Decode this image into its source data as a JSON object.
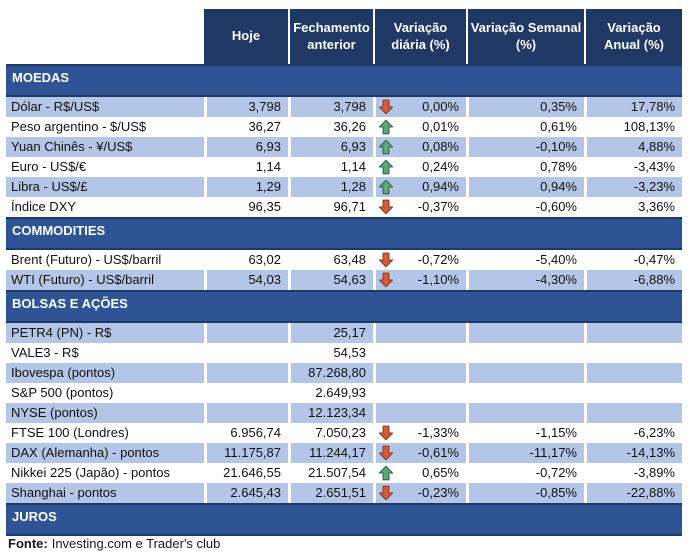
{
  "header": {
    "columns": [
      "Hoje",
      "Fechamento anterior",
      "Variação diária (%)",
      "Variação Semanal (%)",
      "Variação Anual (%)"
    ]
  },
  "sections": [
    {
      "title": "MOEDAS",
      "rows": [
        {
          "label": "Dólar - R$/US$",
          "today": "3,798",
          "prev_close": "3,798",
          "arrow": "down",
          "daily": "0,00%",
          "weekly": "0,35%",
          "annual": "17,78%",
          "shaded": true
        },
        {
          "label": "Peso argentino - $/US$",
          "today": "36,27",
          "prev_close": "36,26",
          "arrow": "up",
          "daily": "0,01%",
          "weekly": "0,61%",
          "annual": "108,13%",
          "shaded": false
        },
        {
          "label": "Yuan Chinês - ¥/US$",
          "today": "6,93",
          "prev_close": "6,93",
          "arrow": "up",
          "daily": "0,08%",
          "weekly": "-0,10%",
          "annual": "4,88%",
          "shaded": true
        },
        {
          "label": "Euro - US$/€",
          "today": "1,14",
          "prev_close": "1,14",
          "arrow": "up",
          "daily": "0,24%",
          "weekly": "0,78%",
          "annual": "-3,43%",
          "shaded": false
        },
        {
          "label": "Libra - US$/£",
          "today": "1,29",
          "prev_close": "1,28",
          "arrow": "up",
          "daily": "0,94%",
          "weekly": "0,94%",
          "annual": "-3,23%",
          "shaded": true
        },
        {
          "label": "Índice DXY",
          "today": "96,35",
          "prev_close": "96,71",
          "arrow": "down",
          "daily": "-0,37%",
          "weekly": "-0,60%",
          "annual": "3,36%",
          "shaded": false
        }
      ]
    },
    {
      "title": "COMMODITIES",
      "rows": [
        {
          "label": "Brent (Futuro) - US$/barril",
          "today": "63,02",
          "prev_close": "63,48",
          "arrow": "down",
          "daily": "-0,72%",
          "weekly": "-5,40%",
          "annual": "-0,47%",
          "shaded": false
        },
        {
          "label": "WTI (Futuro) - US$/barril",
          "today": "54,03",
          "prev_close": "54,63",
          "arrow": "down",
          "daily": "-1,10%",
          "weekly": "-4,30%",
          "annual": "-6,88%",
          "shaded": true
        }
      ]
    },
    {
      "title": "BOLSAS E AÇÕES",
      "rows": [
        {
          "label": "PETR4 (PN) - R$",
          "today": "",
          "prev_close": "25,17",
          "arrow": "",
          "daily": "",
          "weekly": "",
          "annual": "",
          "shaded": true
        },
        {
          "label": "VALE3 - R$",
          "today": "",
          "prev_close": "54,53",
          "arrow": "",
          "daily": "",
          "weekly": "",
          "annual": "",
          "shaded": false
        },
        {
          "label": "Ibovespa (pontos)",
          "today": "",
          "prev_close": "87.268,80",
          "arrow": "",
          "daily": "",
          "weekly": "",
          "annual": "",
          "shaded": true
        },
        {
          "label": "S&P 500 (pontos)",
          "today": "",
          "prev_close": "2.649,93",
          "arrow": "",
          "daily": "",
          "weekly": "",
          "annual": "",
          "shaded": false
        },
        {
          "label": "NYSE (pontos)",
          "today": "",
          "prev_close": "12.123,34",
          "arrow": "",
          "daily": "",
          "weekly": "",
          "annual": "",
          "shaded": true
        },
        {
          "label": "FTSE 100 (Londres)",
          "today": "6.956,74",
          "prev_close": "7.050,23",
          "arrow": "down",
          "daily": "-1,33%",
          "weekly": "-1,15%",
          "annual": "-6,23%",
          "shaded": false
        },
        {
          "label": "DAX (Alemanha) - pontos",
          "today": "11.175,87",
          "prev_close": "11.244,17",
          "arrow": "down",
          "daily": "-0,61%",
          "weekly": "-11,17%",
          "annual": "-14,13%",
          "shaded": true
        },
        {
          "label": "Nikkei 225 (Japão) - pontos",
          "today": "21.646,55",
          "prev_close": "21.507,54",
          "arrow": "up",
          "daily": "0,65%",
          "weekly": "-0,72%",
          "annual": "-3,89%",
          "shaded": false
        },
        {
          "label": "Shanghai - pontos",
          "today": "2.645,43",
          "prev_close": "2.651,51",
          "arrow": "down",
          "daily": "-0,23%",
          "weekly": "-0,85%",
          "annual": "-22,88%",
          "shaded": true
        }
      ]
    },
    {
      "title": "JUROS",
      "rows": []
    }
  ],
  "footer": {
    "source_label": "Fonte:",
    "source_text": "Investing.com e Trader's club"
  },
  "colors": {
    "header_bg": "#1F3864",
    "section_bg": "#2F5496",
    "shaded_row": "#B4C6E7",
    "up_arrow": "#5FA777",
    "up_arrow_stroke": "#2E6B4E",
    "down_arrow": "#D55C3A",
    "down_arrow_stroke": "#8C3B22"
  },
  "icons": {
    "up": "up-arrow-icon",
    "down": "down-arrow-icon"
  }
}
